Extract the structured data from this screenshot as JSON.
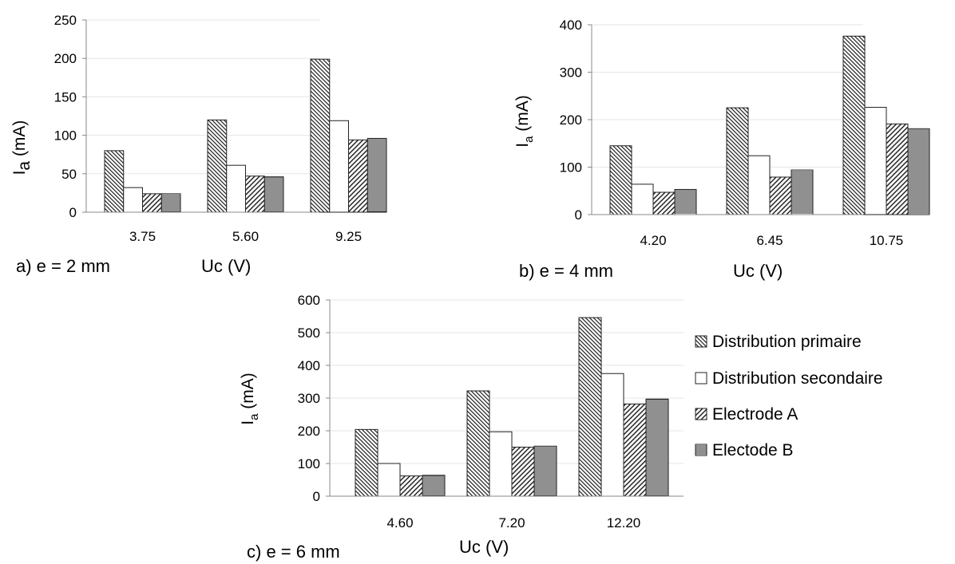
{
  "legend": [
    "Distribution primaire",
    "Distribution secondaire",
    "Electrode A",
    "Electode B"
  ],
  "chart_data": [
    {
      "type": "bar",
      "panel_label": "a) e = 2 mm",
      "xlabel": "Uc (V)",
      "ylabel": "I",
      "ylabel_sub": "a",
      "ylabel_unit": " (mA)",
      "categories": [
        "3.75",
        "5.60",
        "9.25"
      ],
      "ylim": [
        0,
        250
      ],
      "yticks": [
        0,
        50,
        100,
        150,
        200,
        250
      ],
      "series": [
        {
          "name": "Distribution primaire",
          "values": [
            80,
            120,
            199
          ]
        },
        {
          "name": "Distribution secondaire",
          "values": [
            32,
            61,
            119
          ]
        },
        {
          "name": "Electrode A",
          "values": [
            24,
            47,
            94
          ]
        },
        {
          "name": "Electode B",
          "values": [
            24,
            46,
            96
          ]
        }
      ]
    },
    {
      "type": "bar",
      "panel_label": "b) e = 4 mm",
      "xlabel": "Uc (V)",
      "ylabel": "I",
      "ylabel_sub": "a",
      "ylabel_unit": " (mA)",
      "categories": [
        "4.20",
        "6.45",
        "10.75"
      ],
      "ylim": [
        0,
        400
      ],
      "yticks": [
        0,
        100,
        200,
        300,
        400
      ],
      "series": [
        {
          "name": "Distribution primaire",
          "values": [
            145,
            225,
            376
          ]
        },
        {
          "name": "Distribution secondaire",
          "values": [
            64,
            124,
            226
          ]
        },
        {
          "name": "Electrode A",
          "values": [
            47,
            79,
            191
          ]
        },
        {
          "name": "Electode B",
          "values": [
            53,
            94,
            181
          ]
        }
      ]
    },
    {
      "type": "bar",
      "panel_label": "c) e = 6 mm",
      "xlabel": "Uc (V)",
      "ylabel": "I",
      "ylabel_sub": "a",
      "ylabel_unit": " (mA)",
      "categories": [
        "4.60",
        "7.20",
        "12.20"
      ],
      "ylim": [
        0,
        600
      ],
      "yticks": [
        0,
        100,
        200,
        300,
        400,
        500,
        600
      ],
      "series": [
        {
          "name": "Distribution primaire",
          "values": [
            204,
            322,
            546
          ]
        },
        {
          "name": "Distribution secondaire",
          "values": [
            100,
            197,
            375
          ]
        },
        {
          "name": "Electrode A",
          "values": [
            62,
            150,
            282
          ]
        },
        {
          "name": "Electode B",
          "values": [
            64,
            153,
            297
          ]
        }
      ]
    }
  ]
}
